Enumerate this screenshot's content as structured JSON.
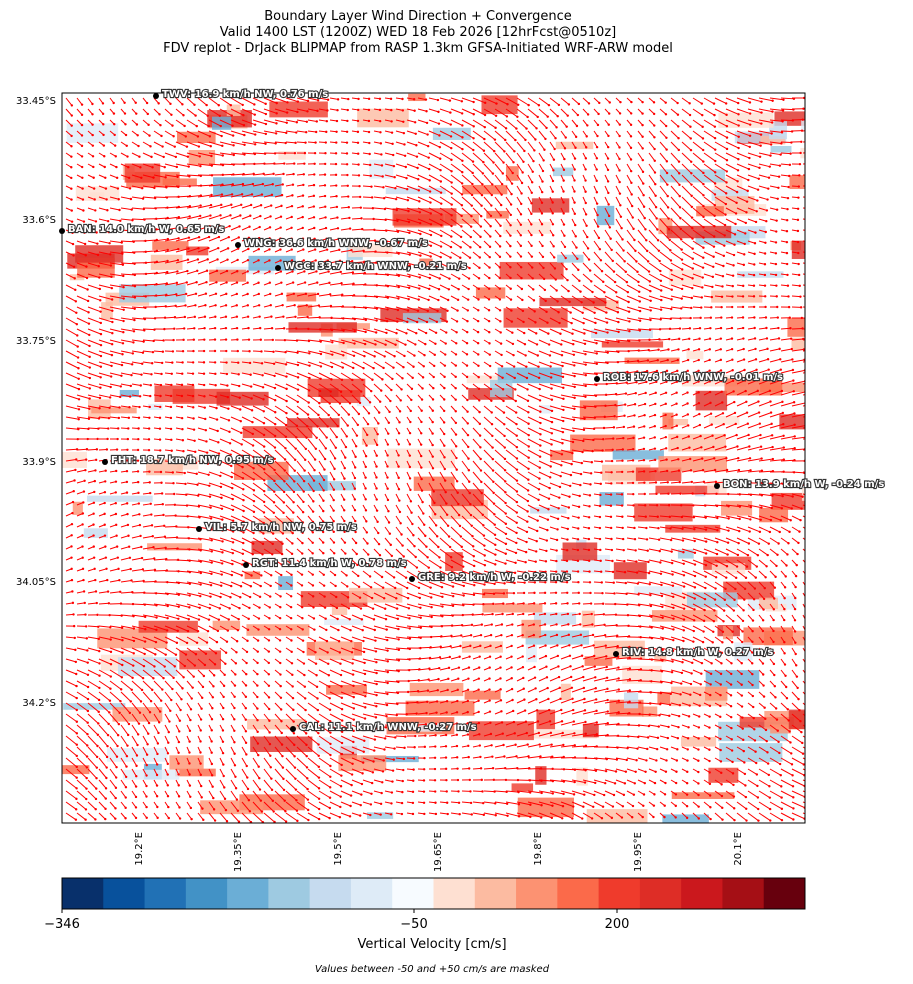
{
  "title": [
    "Boundary Layer Wind Direction + Convergence",
    "Valid 1400 LST (1200Z) WED 18 Feb 2026 [12hrFcst@0510z]",
    "FDV replot - DrJack BLIPMAP from RASP 1.3km GFSA-Initiated WRF-ARW model"
  ],
  "map": {
    "lat_ticks": [
      {
        "value": -33.45,
        "label": "33.45°S"
      },
      {
        "value": -33.6,
        "label": "33.6°S"
      },
      {
        "value": -33.75,
        "label": "33.75°S"
      },
      {
        "value": -33.9,
        "label": "33.9°S"
      },
      {
        "value": -34.05,
        "label": "34.05°S"
      },
      {
        "value": -34.2,
        "label": "34.2°S"
      }
    ],
    "lon_ticks": [
      {
        "value": 19.2,
        "label": "19.2°E"
      },
      {
        "value": 19.35,
        "label": "19.35°E"
      },
      {
        "value": 19.5,
        "label": "19.5°E"
      },
      {
        "value": 19.65,
        "label": "19.65°E"
      },
      {
        "value": 19.8,
        "label": "19.8°E"
      },
      {
        "value": 19.95,
        "label": "19.95°E"
      },
      {
        "value": 20.1,
        "label": "20.1°E"
      }
    ],
    "stations": [
      "TWV: 16.9 km/h NW, 0.76 m/s",
      "BAN: 14.0 km/h W, 0.65 m/s",
      "WNG: 36.6 km/h WNW, -0.67 m/s",
      "WGC: 33.7 km/h WNW, -0.21 m/s",
      "ROB: 17.6 km/h WNW, -0.01 m/s",
      "FHT: 18.7 km/h NW, 0.95 m/s",
      "BON: 13.9 km/h W, -0.24 m/s",
      "VIL: 5.7 km/h NW, 0.75 m/s",
      "RGT: 11.4 km/h W, 0.78 m/s",
      "GRE: 9.2 km/h W, -0.22 m/s",
      "RIV: 14.8 km/h W, 0.27 m/s",
      "CAL: 11.1 km/h WNW, -0.27 m/s"
    ]
  },
  "colorbar": {
    "label": "Vertical Velocity [cm/s]",
    "colors": [
      "#08306b",
      "#08519c",
      "#2171b5",
      "#4292c6",
      "#6baed6",
      "#9ecae1",
      "#c6dbef",
      "#deebf7",
      "#f7fbff",
      "#fee0d2",
      "#fcbba1",
      "#fc9272",
      "#fb6a4a",
      "#ef3b2c",
      "#de2d26",
      "#cb181d",
      "#a50f15",
      "#67000d"
    ],
    "ticks": [
      {
        "value": -346,
        "label": "−346"
      },
      {
        "value": -50,
        "label": "−50"
      },
      200
    ],
    "note": "Values between -50 and +50 cm/s are masked"
  }
}
